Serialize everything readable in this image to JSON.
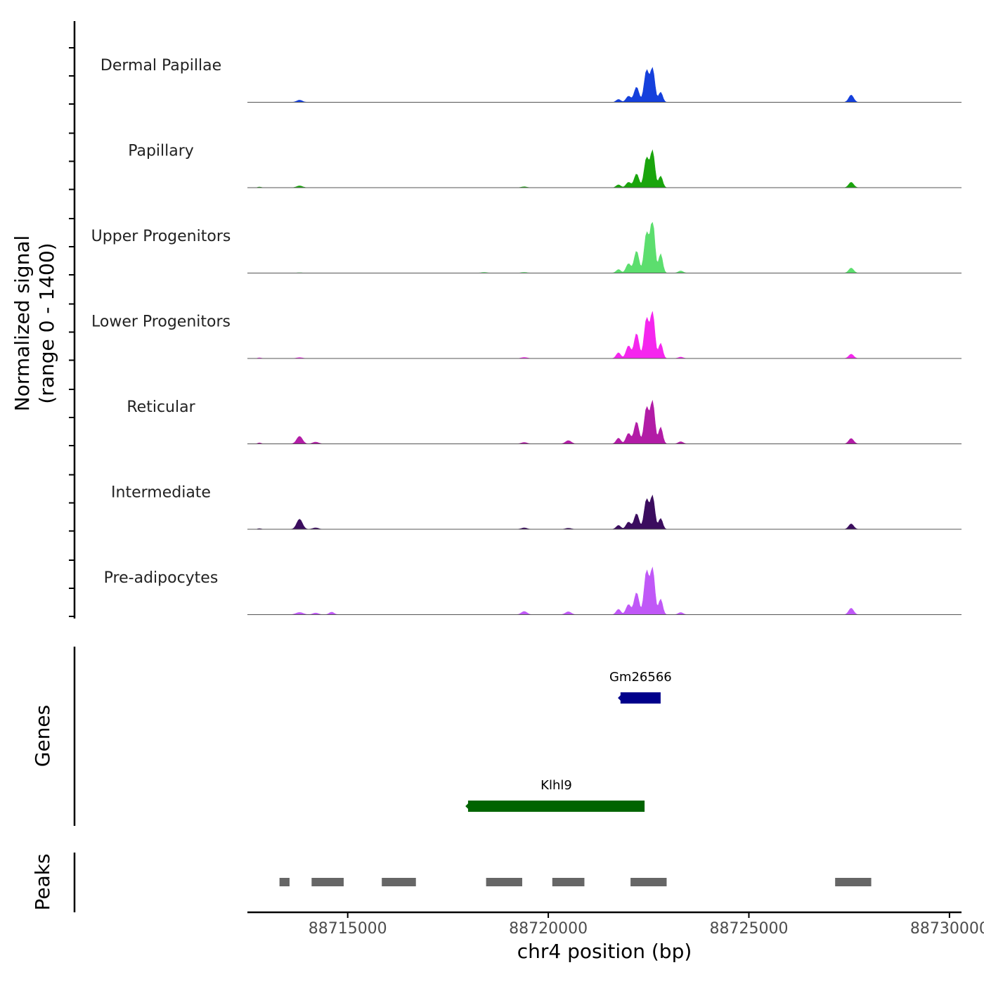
{
  "chart_data": {
    "type": "area",
    "title": "",
    "xlabel": "chr4 position (bp)",
    "ylabel": "Normalized signal\n(range 0 - 1400)",
    "xlim": [
      88712500,
      88730300
    ],
    "ylim": [
      0,
      1400
    ],
    "x_ticks": [
      88715000,
      88720000,
      88725000,
      88730000
    ],
    "x_tick_labels": [
      "88715000",
      "88720000",
      "88725000",
      "88730000"
    ],
    "coverage_tracks": [
      {
        "name": "Dermal Papillae",
        "color": "#1540dc",
        "peaks": [
          [
            88713800,
            60,
            70
          ],
          [
            88721750,
            80,
            55
          ],
          [
            88722000,
            170,
            60
          ],
          [
            88722200,
            420,
            60
          ],
          [
            88722450,
            880,
            60
          ],
          [
            88722600,
            920,
            55
          ],
          [
            88722800,
            280,
            50
          ],
          [
            88727550,
            200,
            60
          ]
        ]
      },
      {
        "name": "Papillary",
        "color": "#1aa50d",
        "peaks": [
          [
            88712800,
            20,
            40
          ],
          [
            88713800,
            50,
            70
          ],
          [
            88719400,
            25,
            70
          ],
          [
            88721750,
            80,
            55
          ],
          [
            88722000,
            150,
            60
          ],
          [
            88722200,
            380,
            60
          ],
          [
            88722450,
            820,
            60
          ],
          [
            88722600,
            1000,
            55
          ],
          [
            88722800,
            320,
            50
          ],
          [
            88727550,
            150,
            60
          ]
        ]
      },
      {
        "name": "Upper Progenitors",
        "color": "#5cde6e",
        "peaks": [
          [
            88713800,
            10,
            70
          ],
          [
            88718400,
            20,
            70
          ],
          [
            88719400,
            20,
            70
          ],
          [
            88721750,
            100,
            55
          ],
          [
            88722000,
            260,
            60
          ],
          [
            88722200,
            610,
            60
          ],
          [
            88722450,
            1100,
            60
          ],
          [
            88722600,
            1450,
            55
          ],
          [
            88722800,
            530,
            50
          ],
          [
            88723300,
            60,
            60
          ],
          [
            88727550,
            140,
            60
          ]
        ]
      },
      {
        "name": "Lower Progenitors",
        "color": "#f526ee",
        "peaks": [
          [
            88712800,
            20,
            40
          ],
          [
            88713800,
            25,
            70
          ],
          [
            88719400,
            30,
            70
          ],
          [
            88721750,
            160,
            55
          ],
          [
            88722000,
            350,
            60
          ],
          [
            88722200,
            690,
            60
          ],
          [
            88722450,
            1100,
            60
          ],
          [
            88722600,
            1250,
            55
          ],
          [
            88722800,
            420,
            50
          ],
          [
            88723300,
            40,
            60
          ],
          [
            88727550,
            120,
            60
          ]
        ]
      },
      {
        "name": "Reticular",
        "color": "#b21ca6",
        "peaks": [
          [
            88712800,
            30,
            40
          ],
          [
            88713800,
            210,
            70
          ],
          [
            88714200,
            50,
            70
          ],
          [
            88719400,
            40,
            70
          ],
          [
            88720500,
            90,
            70
          ],
          [
            88721750,
            160,
            55
          ],
          [
            88722000,
            290,
            60
          ],
          [
            88722200,
            610,
            60
          ],
          [
            88722450,
            1000,
            60
          ],
          [
            88722600,
            1150,
            55
          ],
          [
            88722800,
            460,
            50
          ],
          [
            88723300,
            60,
            60
          ],
          [
            88727550,
            150,
            60
          ]
        ]
      },
      {
        "name": "Intermediate",
        "color": "#3b0d5e",
        "peaks": [
          [
            88712800,
            20,
            40
          ],
          [
            88713800,
            280,
            70
          ],
          [
            88714200,
            40,
            70
          ],
          [
            88719400,
            40,
            70
          ],
          [
            88720500,
            30,
            70
          ],
          [
            88721750,
            110,
            55
          ],
          [
            88722000,
            200,
            60
          ],
          [
            88722200,
            430,
            60
          ],
          [
            88722450,
            820,
            60
          ],
          [
            88722600,
            900,
            55
          ],
          [
            88722800,
            300,
            50
          ],
          [
            88727550,
            150,
            60
          ]
        ]
      },
      {
        "name": "Pre-adipocytes",
        "color": "#c058f7",
        "peaks": [
          [
            88713800,
            60,
            90
          ],
          [
            88714200,
            45,
            70
          ],
          [
            88714600,
            70,
            60
          ],
          [
            88719400,
            90,
            70
          ],
          [
            88720500,
            80,
            70
          ],
          [
            88721750,
            150,
            55
          ],
          [
            88722000,
            280,
            60
          ],
          [
            88722200,
            610,
            60
          ],
          [
            88722450,
            1200,
            60
          ],
          [
            88722600,
            1250,
            55
          ],
          [
            88722800,
            430,
            50
          ],
          [
            88723300,
            60,
            60
          ],
          [
            88727550,
            180,
            60
          ]
        ]
      }
    ],
    "genes": [
      {
        "name": "Gm26566",
        "start": 88721800,
        "end": 88722800,
        "strand": "-",
        "color": "#00008b",
        "row": 0
      },
      {
        "name": "Klhl9",
        "start": 88718000,
        "end": 88722400,
        "strand": "-",
        "color": "#006400",
        "row": 1
      }
    ],
    "genes_axis_label": "Genes",
    "peaks_axis_label": "Peaks",
    "peak_regions": [
      [
        88713300,
        88713550
      ],
      [
        88714100,
        88714900
      ],
      [
        88715850,
        88716700
      ],
      [
        88718450,
        88719350
      ],
      [
        88720100,
        88720900
      ],
      [
        88722050,
        88722950
      ],
      [
        88727150,
        88728050
      ]
    ],
    "peak_color": "#666666"
  }
}
